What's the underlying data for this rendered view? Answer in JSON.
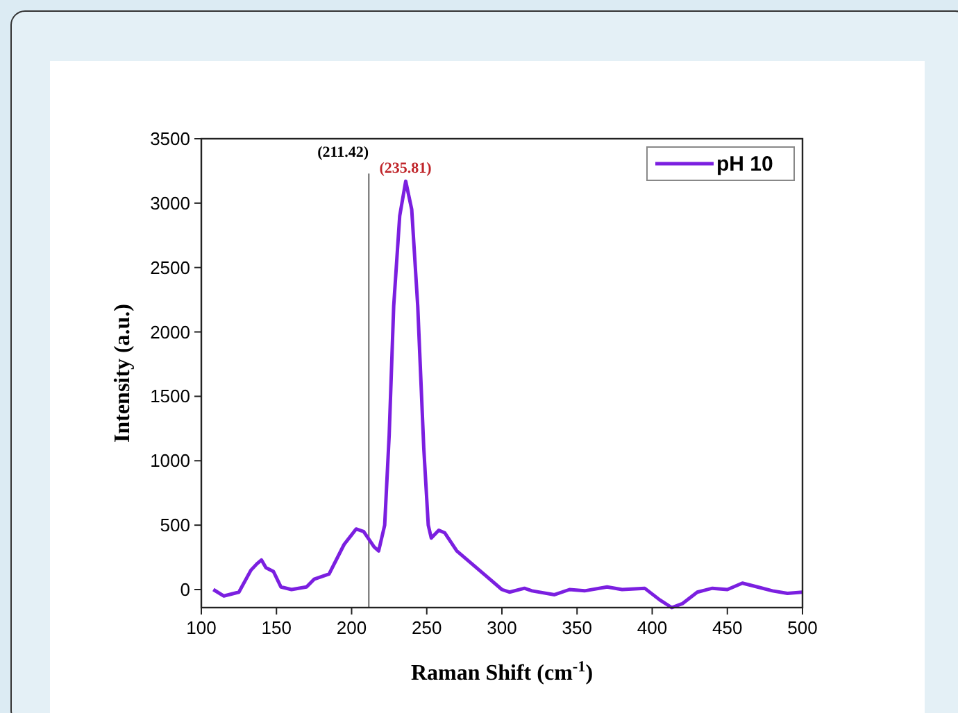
{
  "chart_data": {
    "type": "line",
    "xlabel": "Raman Shift (cm$^{-1}$)",
    "ylabel": "Intensity (a.u.)",
    "xlim": [
      100,
      500
    ],
    "xticks": [
      100,
      150,
      200,
      250,
      300,
      350,
      400,
      450,
      500
    ],
    "ylim": [
      -140,
      3500
    ],
    "yticks": [
      0,
      500,
      1000,
      1500,
      2000,
      2500,
      3000,
      3500
    ],
    "legend": "top right",
    "grid": false,
    "series": [
      {
        "name": "pH 10",
        "color": "#7b1fe0",
        "x": [
          108,
          115,
          125,
          133,
          137,
          140,
          143,
          148,
          153,
          160,
          170,
          175,
          185,
          195,
          203,
          208,
          215,
          218,
          222,
          225,
          228,
          232,
          236,
          240,
          244,
          248,
          251,
          253,
          258,
          262,
          270,
          280,
          290,
          300,
          305,
          315,
          320,
          335,
          345,
          355,
          370,
          380,
          395,
          405,
          413,
          420,
          430,
          440,
          450,
          460,
          470,
          480,
          490,
          500
        ],
        "values": [
          0,
          -50,
          -20,
          150,
          200,
          230,
          170,
          140,
          20,
          0,
          20,
          80,
          120,
          350,
          470,
          450,
          330,
          300,
          500,
          1200,
          2200,
          2900,
          3170,
          2950,
          2200,
          1100,
          500,
          400,
          460,
          440,
          300,
          200,
          100,
          0,
          -20,
          10,
          -10,
          -40,
          0,
          -10,
          20,
          0,
          10,
          -80,
          -140,
          -110,
          -20,
          10,
          0,
          50,
          20,
          -10,
          -30,
          -20
        ]
      }
    ],
    "ref_lines": [
      {
        "axis": "x",
        "value": 211.42,
        "label": "(211.42)",
        "color": "#808080"
      }
    ],
    "annotations": [
      {
        "text": "(235.81)",
        "x": 235.81,
        "y": 3170
      }
    ]
  }
}
